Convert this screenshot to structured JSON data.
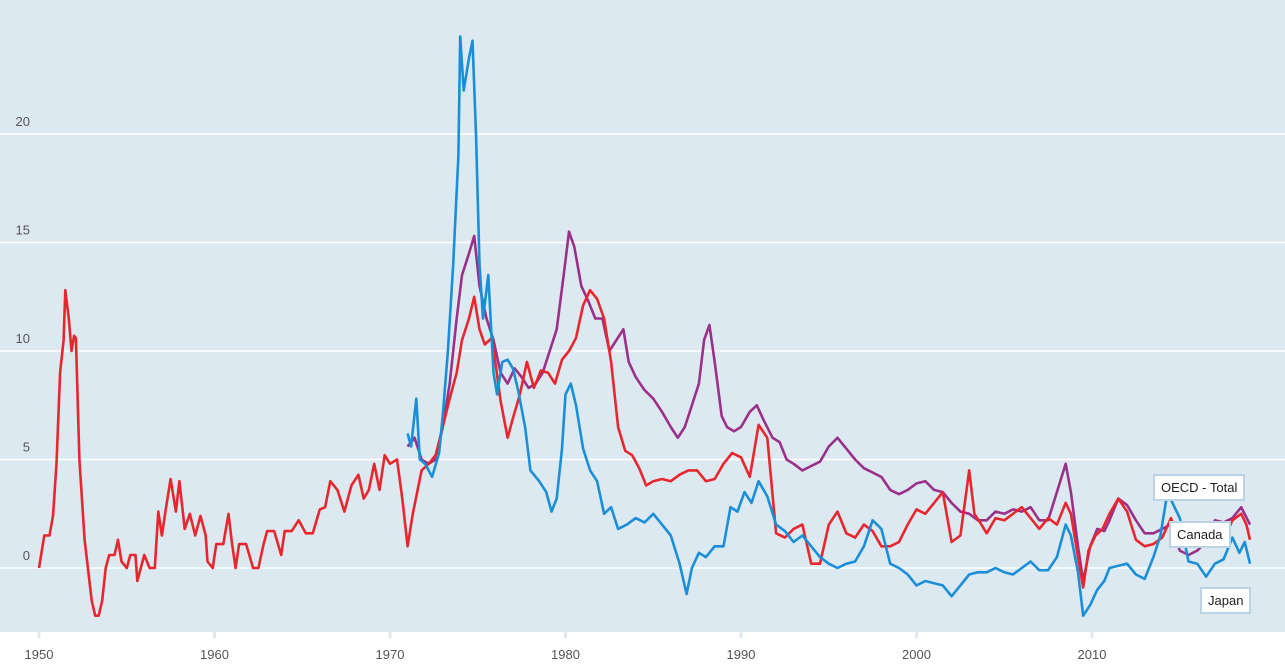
{
  "chart_data": {
    "type": "line",
    "title": "",
    "xlabel": "",
    "ylabel": "",
    "xlim": [
      1950,
      2019.5
    ],
    "ylim": [
      -2.95,
      26.2
    ],
    "grid": true,
    "y_ticks": [
      "0",
      "5",
      "10",
      "15",
      "20"
    ],
    "y_tick_values": [
      0,
      5,
      10,
      15,
      20
    ],
    "x_ticks": [
      "1950",
      "1960",
      "1970",
      "1980",
      "1990",
      "2000",
      "2010"
    ],
    "x_tick_values": [
      1950,
      1960,
      1970,
      1980,
      1990,
      2000,
      2010
    ],
    "legend": "direct-labels at line ends (right)",
    "series": [
      {
        "name": "Canada",
        "color": "#e8262e",
        "x": [
          1950.0,
          1950.3,
          1950.6,
          1950.8,
          1951.0,
          1951.2,
          1951.4,
          1951.5,
          1951.7,
          1951.85,
          1952.0,
          1952.1,
          1952.3,
          1952.6,
          1953.0,
          1953.2,
          1953.4,
          1953.6,
          1953.8,
          1954.0,
          1954.3,
          1954.5,
          1954.7,
          1955.0,
          1955.2,
          1955.5,
          1955.6,
          1956.0,
          1956.3,
          1956.6,
          1956.8,
          1957.0,
          1957.2,
          1957.5,
          1957.8,
          1958.0,
          1958.3,
          1958.6,
          1958.9,
          1959.2,
          1959.5,
          1959.6,
          1959.9,
          1960.1,
          1960.5,
          1960.8,
          1961.0,
          1961.2,
          1961.4,
          1961.8,
          1962.2,
          1962.5,
          1962.8,
          1963.0,
          1963.4,
          1963.8,
          1964.0,
          1964.4,
          1964.8,
          1965.2,
          1965.6,
          1966.0,
          1966.3,
          1966.6,
          1967.0,
          1967.4,
          1967.8,
          1968.2,
          1968.5,
          1968.8,
          1969.1,
          1969.4,
          1969.7,
          1970.0,
          1970.4,
          1970.7,
          1971.0,
          1971.3,
          1971.8,
          1972.2,
          1972.6,
          1973.0,
          1973.4,
          1973.8,
          1974.1,
          1974.5,
          1974.8,
          1975.1,
          1975.4,
          1975.8,
          1976.0,
          1976.3,
          1976.7,
          1977.0,
          1977.4,
          1977.8,
          1978.2,
          1978.6,
          1979.0,
          1979.4,
          1979.8,
          1980.2,
          1980.6,
          1981.0,
          1981.4,
          1981.8,
          1982.2,
          1982.6,
          1983.0,
          1983.4,
          1983.8,
          1984.2,
          1984.6,
          1985.0,
          1985.5,
          1986.0,
          1986.5,
          1987.0,
          1987.5,
          1988.0,
          1988.5,
          1989.0,
          1989.5,
          1990.0,
          1990.5,
          1991.0,
          1991.5,
          1992.0,
          1992.5,
          1993.0,
          1993.5,
          1994.0,
          1994.5,
          1995.0,
          1995.5,
          1996.0,
          1996.5,
          1997.0,
          1997.5,
          1998.0,
          1998.5,
          1999.0,
          1999.5,
          2000.0,
          2000.5,
          2001.0,
          2001.5,
          2002.0,
          2002.5,
          2003.0,
          2003.3,
          2003.7,
          2004.0,
          2004.5,
          2005.0,
          2005.5,
          2006.0,
          2006.5,
          2007.0,
          2007.5,
          2008.0,
          2008.5,
          2008.8,
          2009.2,
          2009.5,
          2009.8,
          2010.2,
          2010.6,
          2011.0,
          2011.5,
          2012.0,
          2012.5,
          2013.0,
          2013.5,
          2014.0,
          2014.5,
          2015.0,
          2015.5,
          2016.0,
          2016.5,
          2017.0,
          2017.5,
          2018.0,
          2018.5,
          2018.8,
          2019.0
        ],
        "values": [
          0,
          1.5,
          1.5,
          2.4,
          4.8,
          9,
          10.5,
          12.8,
          11.5,
          10,
          10.7,
          10.6,
          5,
          1.3,
          -1.5,
          -2.2,
          -2.2,
          -1.5,
          0,
          0.6,
          0.6,
          1.3,
          0.3,
          0,
          0.6,
          0.6,
          -0.6,
          0.6,
          0,
          0,
          2.6,
          1.5,
          2.6,
          4.1,
          2.6,
          4,
          1.8,
          2.5,
          1.5,
          2.4,
          1.5,
          0.3,
          0,
          1.1,
          1.1,
          2.5,
          1.1,
          0,
          1.1,
          1.1,
          0,
          0,
          1.1,
          1.7,
          1.7,
          0.6,
          1.7,
          1.7,
          2.2,
          1.6,
          1.6,
          2.7,
          2.8,
          4,
          3.6,
          2.6,
          3.8,
          4.3,
          3.2,
          3.6,
          4.8,
          3.6,
          5.2,
          4.8,
          5.0,
          3.2,
          1.0,
          2.5,
          4.5,
          4.8,
          5.2,
          6.5,
          7.8,
          9.0,
          10.5,
          11.5,
          12.5,
          11,
          10.3,
          10.6,
          9.5,
          7.7,
          6.0,
          6.9,
          8.0,
          9.5,
          8.3,
          9.1,
          9.0,
          8.5,
          9.6,
          10.0,
          10.6,
          12.1,
          12.8,
          12.4,
          11.5,
          9.5,
          6.5,
          5.4,
          5.2,
          4.6,
          3.8,
          4.0,
          4.1,
          4.0,
          4.3,
          4.5,
          4.5,
          4.0,
          4.1,
          4.8,
          5.3,
          5.1,
          4.2,
          6.6,
          6.0,
          1.6,
          1.4,
          1.8,
          2.0,
          0.2,
          0.2,
          2.0,
          2.6,
          1.6,
          1.4,
          2.0,
          1.7,
          1.0,
          1.0,
          1.2,
          2.0,
          2.7,
          2.5,
          3.0,
          3.5,
          1.2,
          1.5,
          4.5,
          2.5,
          2.0,
          1.6,
          2.3,
          2.2,
          2.5,
          2.8,
          2.3,
          1.8,
          2.3,
          2.0,
          3.0,
          2.5,
          0.5,
          -0.9,
          0.8,
          1.5,
          1.8,
          2.5,
          3.2,
          2.6,
          1.3,
          1.0,
          1.1,
          1.4,
          2.3,
          1.1,
          1.2,
          1.6,
          1.3,
          2.0,
          1.3,
          2.2,
          2.5,
          2.0,
          1.3
        ]
      },
      {
        "name": "Japan",
        "color": "#1a8fd8",
        "x": [
          1971.0,
          1971.2,
          1971.5,
          1971.7,
          1972.0,
          1972.4,
          1972.8,
          1973.0,
          1973.3,
          1973.6,
          1973.9,
          1974.0,
          1974.2,
          1974.5,
          1974.7,
          1974.9,
          1975.1,
          1975.3,
          1975.6,
          1975.9,
          1976.1,
          1976.4,
          1976.7,
          1977.0,
          1977.3,
          1977.7,
          1978.0,
          1978.5,
          1978.9,
          1979.2,
          1979.5,
          1979.8,
          1980.0,
          1980.3,
          1980.6,
          1981.0,
          1981.4,
          1981.8,
          1982.2,
          1982.6,
          1983.0,
          1983.5,
          1984.0,
          1984.5,
          1985.0,
          1985.5,
          1986.0,
          1986.5,
          1986.9,
          1987.2,
          1987.6,
          1988.0,
          1988.5,
          1989.0,
          1989.4,
          1989.8,
          1990.2,
          1990.6,
          1991.0,
          1991.5,
          1992.0,
          1992.5,
          1993.0,
          1993.5,
          1994.0,
          1994.5,
          1995.0,
          1995.5,
          1996.0,
          1996.5,
          1997.0,
          1997.5,
          1998.0,
          1998.5,
          1999.0,
          1999.5,
          2000.0,
          2000.5,
          2001.0,
          2001.5,
          2002.0,
          2002.5,
          2003.0,
          2003.5,
          2004.0,
          2004.5,
          2005.0,
          2005.5,
          2006.0,
          2006.5,
          2007.0,
          2007.5,
          2008.0,
          2008.5,
          2008.8,
          2009.2,
          2009.5,
          2009.9,
          2010.3,
          2010.7,
          2011.0,
          2011.5,
          2012.0,
          2012.5,
          2013.0,
          2013.5,
          2013.9,
          2014.3,
          2014.7,
          2015.0,
          2015.5,
          2016.0,
          2016.5,
          2017.0,
          2017.5,
          2018.0,
          2018.4,
          2018.7,
          2019.0
        ],
        "values": [
          6.2,
          5.6,
          7.8,
          5.0,
          4.8,
          4.2,
          5.3,
          7.0,
          10,
          14,
          19,
          24.5,
          22,
          23.5,
          24.3,
          20,
          14,
          11.5,
          13.5,
          9,
          8.0,
          9.5,
          9.6,
          9.2,
          8.2,
          6.5,
          4.5,
          4.0,
          3.5,
          2.6,
          3.2,
          5.5,
          8.0,
          8.5,
          7.5,
          5.5,
          4.5,
          4.0,
          2.5,
          2.8,
          1.8,
          2.0,
          2.3,
          2.1,
          2.5,
          2.0,
          1.5,
          0.2,
          -1.2,
          0.0,
          0.7,
          0.5,
          1.0,
          1.0,
          2.8,
          2.6,
          3.5,
          3.0,
          4.0,
          3.3,
          2.0,
          1.7,
          1.2,
          1.5,
          1.0,
          0.5,
          0.2,
          0.0,
          0.2,
          0.3,
          1.0,
          2.2,
          1.8,
          0.2,
          0.0,
          -0.3,
          -0.8,
          -0.6,
          -0.7,
          -0.8,
          -1.3,
          -0.8,
          -0.3,
          -0.2,
          -0.2,
          0.0,
          -0.2,
          -0.3,
          0.0,
          0.3,
          -0.1,
          -0.1,
          0.5,
          2.0,
          1.5,
          -0.2,
          -2.2,
          -1.7,
          -1.0,
          -0.6,
          0.0,
          0.1,
          0.2,
          -0.3,
          -0.5,
          0.5,
          1.5,
          3.5,
          2.8,
          2.3,
          0.3,
          0.2,
          -0.4,
          0.2,
          0.4,
          1.4,
          0.7,
          1.2,
          0.2
        ]
      },
      {
        "name": "OECD - Total",
        "color": "#9a3089",
        "x": [
          1971.0,
          1971.4,
          1971.8,
          1972.2,
          1972.6,
          1973.0,
          1973.4,
          1973.8,
          1974.1,
          1974.5,
          1974.8,
          1975.1,
          1975.5,
          1975.9,
          1976.3,
          1976.7,
          1977.1,
          1977.5,
          1977.9,
          1978.3,
          1978.7,
          1979.1,
          1979.5,
          1979.9,
          1980.2,
          1980.5,
          1980.9,
          1981.3,
          1981.7,
          1982.1,
          1982.5,
          1982.9,
          1983.3,
          1983.6,
          1984.0,
          1984.5,
          1985.0,
          1985.5,
          1986.0,
          1986.4,
          1986.8,
          1987.2,
          1987.6,
          1987.9,
          1988.2,
          1988.5,
          1988.9,
          1989.2,
          1989.6,
          1990.0,
          1990.5,
          1990.9,
          1991.3,
          1991.8,
          1992.2,
          1992.6,
          1993.0,
          1993.5,
          1994.0,
          1994.5,
          1995.0,
          1995.5,
          1996.0,
          1996.5,
          1997.0,
          1997.5,
          1998.0,
          1998.5,
          1999.0,
          1999.5,
          2000.0,
          2000.5,
          2001.0,
          2001.5,
          2002.0,
          2002.5,
          2003.0,
          2003.5,
          2004.0,
          2004.5,
          2005.0,
          2005.5,
          2006.0,
          2006.5,
          2007.0,
          2007.5,
          2008.0,
          2008.5,
          2008.8,
          2009.2,
          2009.5,
          2009.9,
          2010.3,
          2010.7,
          2011.0,
          2011.5,
          2012.0,
          2012.5,
          2013.0,
          2013.5,
          2014.0,
          2014.5,
          2015.0,
          2015.5,
          2016.0,
          2016.5,
          2017.0,
          2017.5,
          2018.0,
          2018.5,
          2019.0
        ],
        "values": [
          5.6,
          6.0,
          5.0,
          4.8,
          5.0,
          6.5,
          8.5,
          11.5,
          13.5,
          14.5,
          15.3,
          13,
          11.5,
          10.5,
          9.0,
          8.5,
          9.2,
          8.8,
          8.3,
          8.5,
          9.0,
          10.0,
          11.0,
          13.5,
          15.5,
          14.8,
          13.0,
          12.3,
          11.5,
          11.5,
          10.0,
          10.5,
          11.0,
          9.5,
          8.8,
          8.2,
          7.8,
          7.2,
          6.5,
          6.0,
          6.5,
          7.5,
          8.5,
          10.5,
          11.2,
          9.5,
          7.0,
          6.5,
          6.3,
          6.5,
          7.2,
          7.5,
          6.8,
          6.0,
          5.8,
          5.0,
          4.8,
          4.5,
          4.7,
          4.9,
          5.6,
          6.0,
          5.5,
          5.0,
          4.6,
          4.4,
          4.2,
          3.6,
          3.4,
          3.6,
          3.9,
          4.0,
          3.6,
          3.5,
          3.0,
          2.6,
          2.5,
          2.2,
          2.2,
          2.6,
          2.5,
          2.7,
          2.6,
          2.8,
          2.2,
          2.2,
          3.5,
          4.8,
          3.5,
          1.0,
          -0.6,
          1.0,
          1.8,
          1.7,
          2.2,
          3.2,
          2.9,
          2.2,
          1.6,
          1.6,
          1.8,
          2.0,
          0.8,
          0.6,
          0.8,
          1.2,
          2.2,
          2.1,
          2.3,
          2.8,
          2.0
        ]
      }
    ]
  },
  "labels": {
    "oecd": "OECD - Total",
    "canada": "Canada",
    "japan": "Japan"
  }
}
